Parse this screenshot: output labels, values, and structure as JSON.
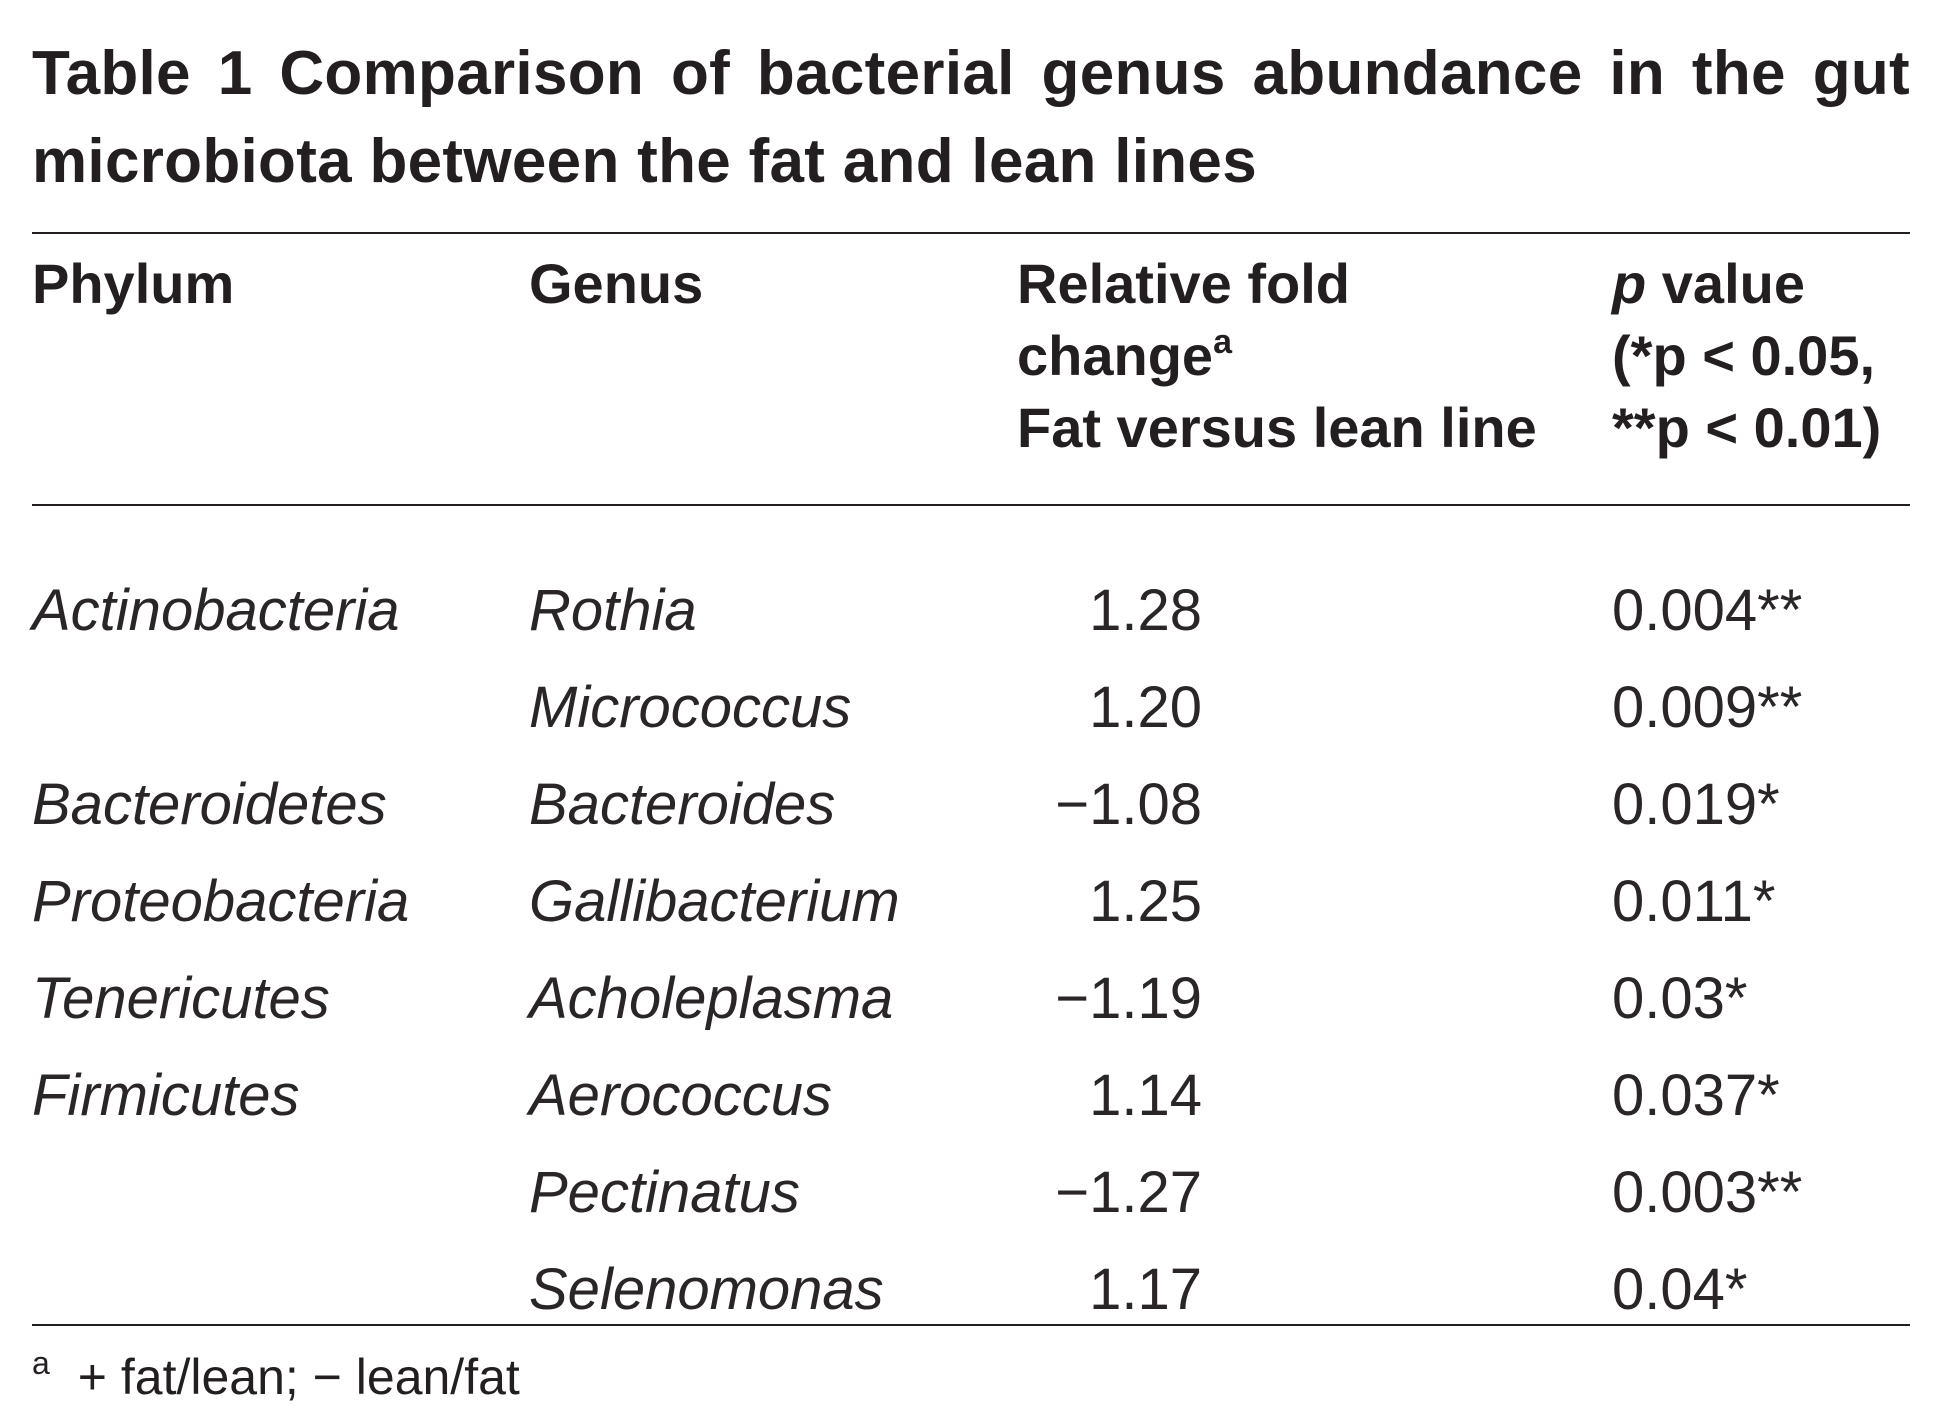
{
  "table": {
    "title": "Table 1  Comparison of bacterial genus abundance in the gut microbiota between the fat and lean lines",
    "headers": {
      "phylum": "Phylum",
      "genus": "Genus",
      "fold_line1": "Relative fold",
      "fold_line2": "change",
      "fold_sup": "a",
      "fold_line3": "Fat versus lean line",
      "p_italic": "p",
      "p_line1_rest": " value",
      "p_line2": "(*p < 0.05,",
      "p_line3": "**p < 0.01)"
    },
    "rows": [
      {
        "phylum": "Actinobacteria",
        "genus": "Rothia",
        "fold": "1.28",
        "pval": "0.004**"
      },
      {
        "phylum": "",
        "genus": "Micrococcus",
        "fold": "1.20",
        "pval": "0.009**"
      },
      {
        "phylum": "Bacteroidetes",
        "genus": "Bacteroides",
        "fold": "−1.08",
        "pval": "0.019*"
      },
      {
        "phylum": "Proteobacteria",
        "genus": "Gallibacterium",
        "fold": "1.25",
        "pval": "0.011*"
      },
      {
        "phylum": "Tenericutes",
        "genus": "Acholeplasma",
        "fold": "−1.19",
        "pval": "0.03*"
      },
      {
        "phylum": "Firmicutes",
        "genus": "Aerococcus",
        "fold": "1.14",
        "pval": "0.037*"
      },
      {
        "phylum": "",
        "genus": "Pectinatus",
        "fold": "−1.27",
        "pval": "0.003**"
      },
      {
        "phylum": "",
        "genus": "Selenomonas",
        "fold": "1.17",
        "pval": "0.04*"
      }
    ],
    "footnote": {
      "mark": "a",
      "text": "+ fat/lean; − lean/fat"
    }
  }
}
